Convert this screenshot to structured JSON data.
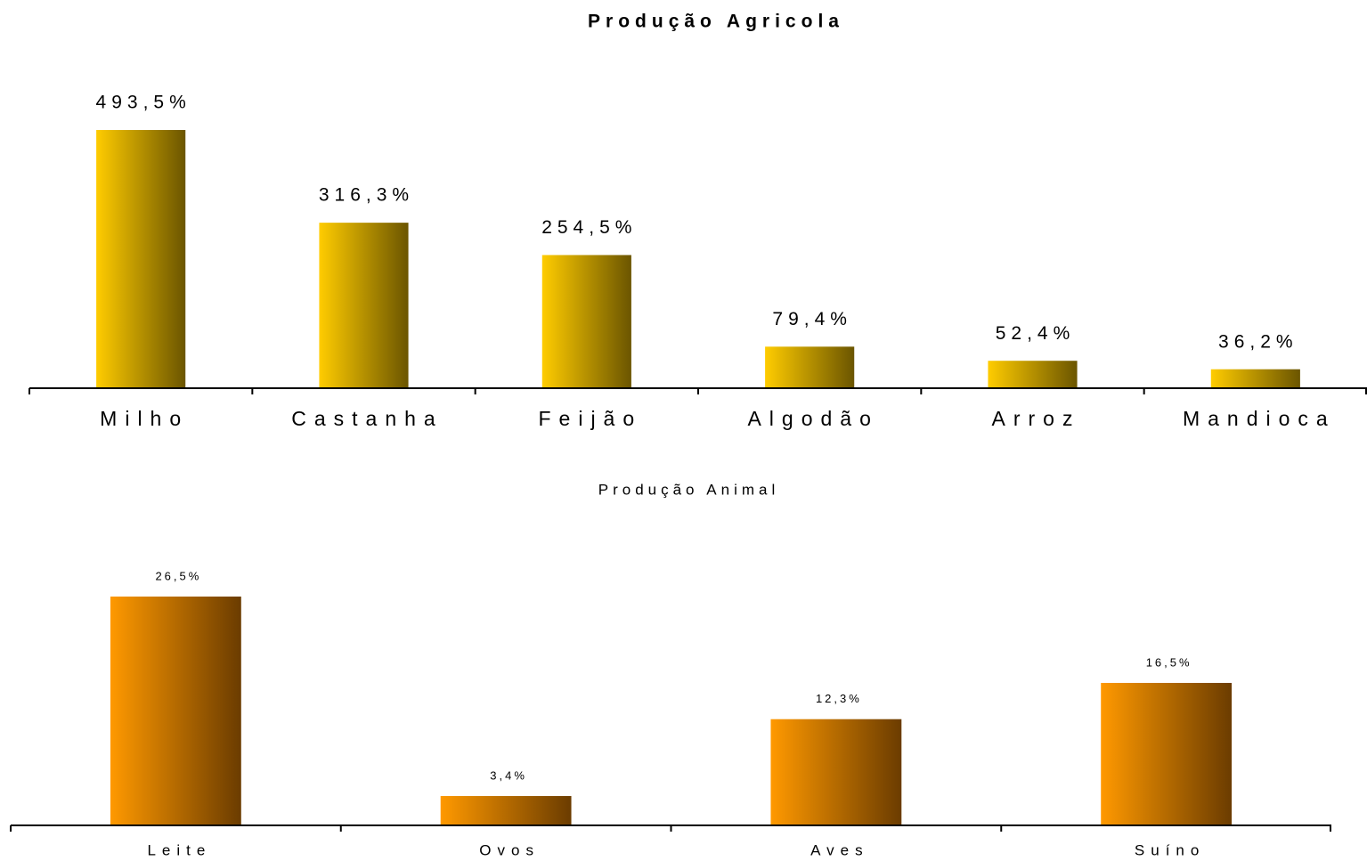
{
  "chart_data": [
    {
      "type": "bar",
      "title": "Produção Agricola",
      "categories": [
        "Milho",
        "Castanha",
        "Feijão",
        "Algodão",
        "Arroz",
        "Mandioca"
      ],
      "values": [
        493.5,
        316.3,
        254.5,
        79.4,
        52.4,
        36.2
      ],
      "value_labels": [
        "493,5%",
        "316,3%",
        "254,5%",
        "79,4%",
        "52,4%",
        "36,2%"
      ],
      "color": "#ffcc00"
    },
    {
      "type": "bar",
      "title": "Produção Animal",
      "categories": [
        "Leite",
        "Ovos",
        "Aves",
        "Suíno"
      ],
      "values": [
        26.5,
        3.4,
        12.3,
        16.5
      ],
      "value_labels": [
        "26,5%",
        "3,4%",
        "12,3%",
        "16,5%"
      ],
      "color": "#ff9900"
    }
  ]
}
